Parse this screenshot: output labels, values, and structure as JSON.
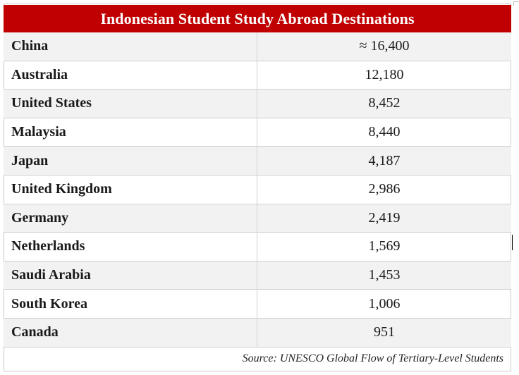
{
  "table": {
    "title": "Indonesian Student Study Abroad Destinations",
    "rows": [
      {
        "country": "China",
        "value": "≈ 16,400"
      },
      {
        "country": "Australia",
        "value": "12,180"
      },
      {
        "country": "United States",
        "value": "8,452"
      },
      {
        "country": "Malaysia",
        "value": "8,440"
      },
      {
        "country": "Japan",
        "value": "4,187"
      },
      {
        "country": "United Kingdom",
        "value": "2,986"
      },
      {
        "country": "Germany",
        "value": "2,419"
      },
      {
        "country": "Netherlands",
        "value": "1,569"
      },
      {
        "country": "Saudi Arabia",
        "value": "1,453"
      },
      {
        "country": "South Korea",
        "value": "1,006"
      },
      {
        "country": "Canada",
        "value": "951"
      }
    ],
    "source": "Source: UNESCO Global Flow of Tertiary-Level Students"
  },
  "colors": {
    "title_background": "#c00000",
    "title_text": "#ffffff",
    "shaded_row": "#f2f2f2",
    "border": "#d0d0d0"
  }
}
